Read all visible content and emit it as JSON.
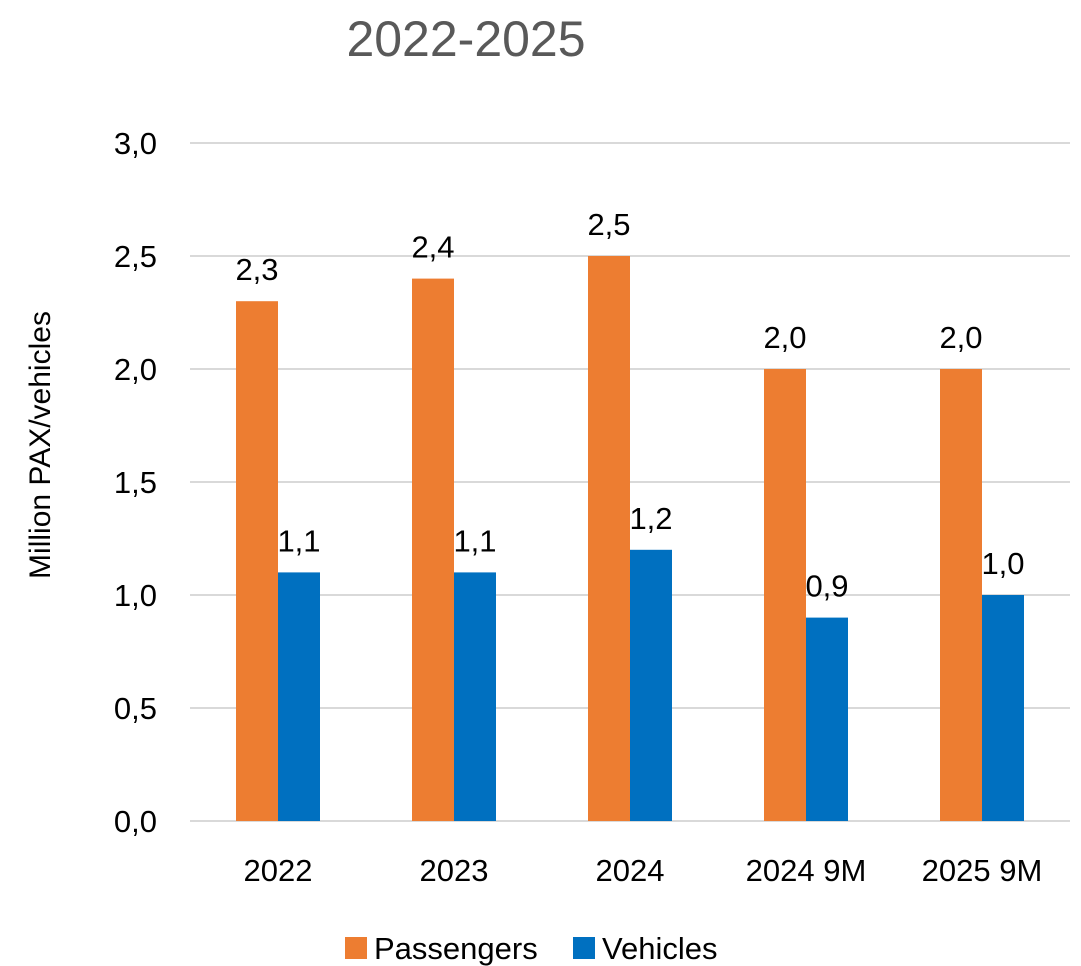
{
  "chart_data": {
    "type": "bar",
    "title": "2022-2025",
    "xlabel": "",
    "ylabel": "Million PAX/vehicles",
    "categories": [
      "2022",
      "2023",
      "2024",
      "2024 9M",
      "2025 9M"
    ],
    "series": [
      {
        "name": "Passengers",
        "color": "#ED7D31",
        "values": [
          2.3,
          2.4,
          2.5,
          2.0,
          2.0
        ],
        "labels": [
          "2,3",
          "2,4",
          "2,5",
          "2,0",
          "2,0"
        ]
      },
      {
        "name": "Vehicles",
        "color": "#0070C0",
        "values": [
          1.1,
          1.1,
          1.2,
          0.9,
          1.0
        ],
        "labels": [
          "1,1",
          "1,1",
          "1,2",
          "0,9",
          "1,0"
        ]
      }
    ],
    "ylim": [
      0,
      3.0
    ],
    "yticks": [
      0,
      0.5,
      1.0,
      1.5,
      2.0,
      2.5,
      3.0
    ],
    "ytick_labels": [
      "0,0",
      "0,5",
      "1,0",
      "1,5",
      "2,0",
      "2,5",
      "3,0"
    ],
    "grid": true,
    "legend_position": "bottom"
  }
}
